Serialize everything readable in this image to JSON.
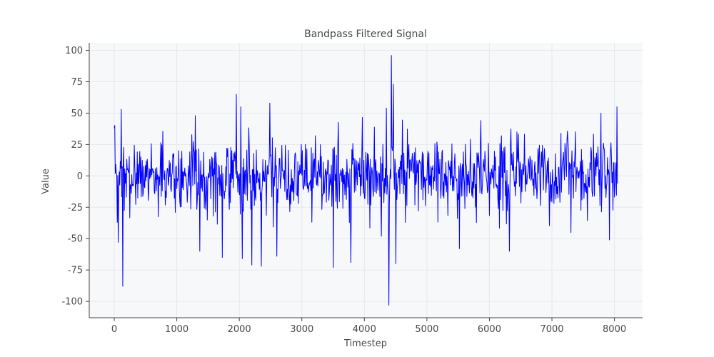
{
  "chart_data": {
    "type": "line",
    "title": "Bandpass Filtered Signal",
    "xlabel": "Timestep",
    "ylabel": "Value",
    "xlim": [
      -400,
      8450
    ],
    "ylim": [
      -113,
      106
    ],
    "xticks": [
      0,
      1000,
      2000,
      3000,
      4000,
      5000,
      6000,
      7000,
      8000
    ],
    "yticks": [
      -100,
      -75,
      -50,
      -25,
      0,
      25,
      50,
      75,
      100
    ],
    "x_range": [
      0,
      8050
    ],
    "grid": true,
    "background": "#f7f8fa",
    "line_color": "#0000ff",
    "notable_points": [
      {
        "x": 0,
        "y": 38
      },
      {
        "x": 45,
        "y": -37
      },
      {
        "x": 65,
        "y": -53
      },
      {
        "x": 110,
        "y": 53
      },
      {
        "x": 135,
        "y": -88
      },
      {
        "x": 1370,
        "y": -60
      },
      {
        "x": 1730,
        "y": -65
      },
      {
        "x": 1950,
        "y": 65
      },
      {
        "x": 2020,
        "y": 55
      },
      {
        "x": 2050,
        "y": -66
      },
      {
        "x": 2200,
        "y": -71
      },
      {
        "x": 2350,
        "y": -72
      },
      {
        "x": 2490,
        "y": 58
      },
      {
        "x": 2600,
        "y": -64
      },
      {
        "x": 3500,
        "y": -73
      },
      {
        "x": 3780,
        "y": -69
      },
      {
        "x": 4350,
        "y": 54
      },
      {
        "x": 4390,
        "y": -103
      },
      {
        "x": 4430,
        "y": 96
      },
      {
        "x": 4460,
        "y": 73
      },
      {
        "x": 4500,
        "y": -70
      },
      {
        "x": 5520,
        "y": -58
      },
      {
        "x": 6320,
        "y": -60
      },
      {
        "x": 7780,
        "y": 50
      },
      {
        "x": 7920,
        "y": -51
      },
      {
        "x": 8040,
        "y": 55
      }
    ],
    "sample_step": 8,
    "noise_amplitude": 14,
    "seed": 7
  }
}
